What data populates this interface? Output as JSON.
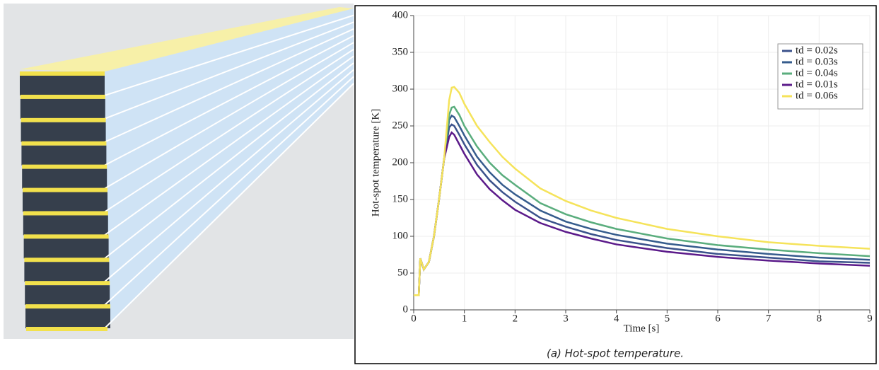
{
  "chart_data": {
    "type": "line",
    "xlabel": "Time [s]",
    "ylabel": "Hot-spot temperature [K]",
    "caption": "(a) Hot-spot temperature.",
    "x": [
      0,
      0.1,
      0.13,
      0.2,
      0.3,
      0.4,
      0.5,
      0.6,
      0.7,
      0.75,
      0.8,
      0.9,
      1,
      1.25,
      1.5,
      1.75,
      2,
      2.5,
      3,
      3.5,
      4,
      5,
      6,
      7,
      8,
      9
    ],
    "series": [
      {
        "name": "td = 0.02s",
        "color": "#3b528b",
        "values": [
          20,
          20,
          70,
          55,
          65,
          100,
          150,
          205,
          248,
          252,
          250,
          238,
          225,
          197,
          176,
          160,
          147,
          125,
          113,
          103,
          95,
          84,
          76,
          71,
          66,
          64
        ]
      },
      {
        "name": "td = 0.03s",
        "color": "#365c8d",
        "values": [
          20,
          20,
          70,
          55,
          65,
          100,
          150,
          205,
          258,
          264,
          262,
          250,
          237,
          208,
          187,
          170,
          157,
          135,
          120,
          110,
          102,
          90,
          82,
          76,
          71,
          68
        ]
      },
      {
        "name": "td = 0.04s",
        "color": "#5aad7d",
        "values": [
          20,
          20,
          70,
          55,
          65,
          100,
          150,
          205,
          265,
          275,
          276,
          265,
          250,
          222,
          200,
          183,
          170,
          145,
          130,
          119,
          110,
          97,
          88,
          82,
          77,
          73
        ]
      },
      {
        "name": "td = 0.01s",
        "color": "#5b1a8a",
        "values": [
          20,
          20,
          70,
          55,
          65,
          100,
          150,
          205,
          235,
          241,
          238,
          225,
          212,
          184,
          164,
          149,
          136,
          118,
          106,
          97,
          89,
          79,
          72,
          67,
          63,
          60
        ]
      },
      {
        "name": "td = 0.06s",
        "color": "#f5e35a",
        "values": [
          20,
          20,
          70,
          55,
          65,
          100,
          150,
          205,
          285,
          302,
          303,
          295,
          280,
          250,
          228,
          208,
          192,
          165,
          148,
          135,
          125,
          110,
          100,
          92,
          87,
          83
        ]
      }
    ],
    "xlim": [
      0,
      9
    ],
    "xticks": [
      0,
      1,
      2,
      3,
      4,
      5,
      6,
      7,
      8,
      9
    ],
    "ylim": [
      0,
      400
    ],
    "yticks": [
      0,
      50,
      100,
      150,
      200,
      250,
      300,
      350,
      400
    ],
    "grid": true,
    "legend": "upper right"
  }
}
